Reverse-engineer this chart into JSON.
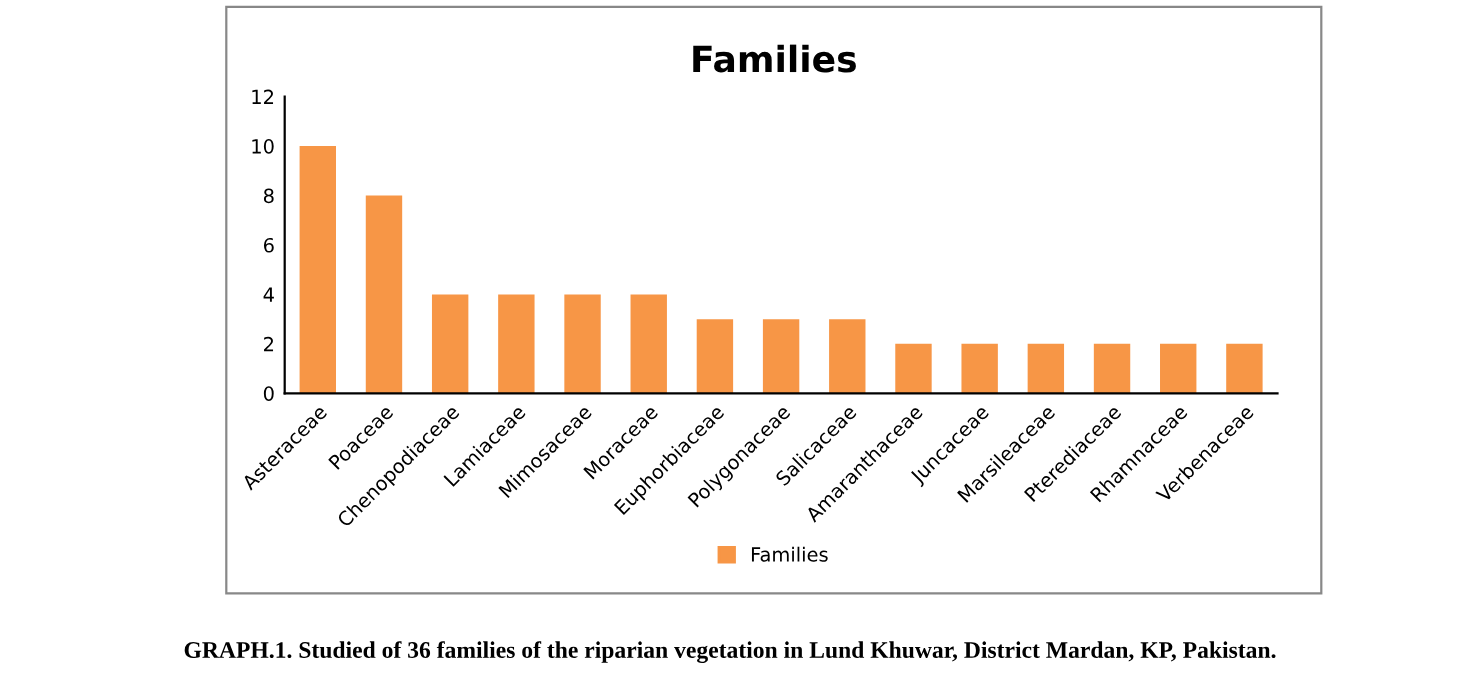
{
  "chart_data": {
    "type": "bar",
    "title": "Families",
    "categories": [
      "Asteraceae",
      "Poaceae",
      "Chenopodiaceae",
      "Lamiaceae",
      "Mimosaceae",
      "Moraceae",
      "Euphorbiaceae",
      "Polygonaceae",
      "Salicaceae",
      "Amaranthaceae",
      "Juncaceae",
      "Marsileaceae",
      "Pterediaceae",
      "Rhamnaceae",
      "Verbenaceae"
    ],
    "series": [
      {
        "name": "Families",
        "color": "#f79646",
        "values": [
          10,
          8,
          4,
          4,
          4,
          4,
          3,
          3,
          3,
          2,
          2,
          2,
          2,
          2,
          2
        ]
      }
    ],
    "ylim": [
      0,
      12
    ],
    "yticks": [
      0,
      2,
      4,
      6,
      8,
      10,
      12
    ],
    "grid": false,
    "legend": "bottom",
    "annotations": [
      "GRAPH.1. Studied of 36 families of the riparian vegetation in Lund Khuwar, District Mardan, KP, Pakistan."
    ]
  }
}
